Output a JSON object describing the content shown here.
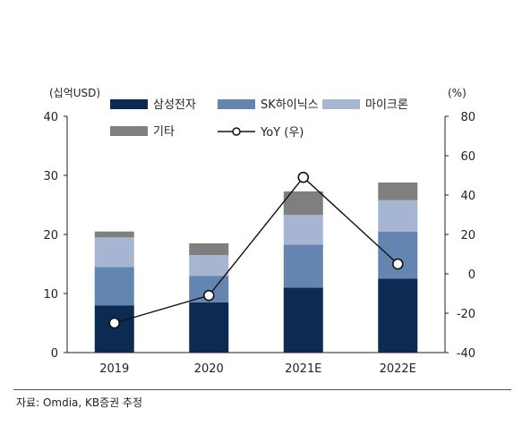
{
  "chart_data": {
    "type": "bar",
    "stacked": true,
    "categories": [
      "2019",
      "2020",
      "2021E",
      "2022E"
    ],
    "series": [
      {
        "name": "삼성전자",
        "color": "#0d2a52",
        "values": [
          8.0,
          8.5,
          11.0,
          12.5
        ]
      },
      {
        "name": "SK하이닉스",
        "color": "#6585b1",
        "values": [
          6.5,
          4.5,
          7.3,
          8.0
        ]
      },
      {
        "name": "마이크론",
        "color": "#a6b5d1",
        "values": [
          5.0,
          3.5,
          5.0,
          5.3
        ]
      },
      {
        "name": "기타",
        "color": "#7f7f7f",
        "values": [
          1.0,
          2.0,
          4.0,
          3.0
        ]
      }
    ],
    "line_series": {
      "name": "YoY (우)",
      "color": "#111111",
      "values": [
        -25,
        -11,
        49,
        5
      ]
    },
    "left_axis": {
      "unit": "(십억USD)",
      "min": 0,
      "max": 40,
      "ticks": [
        0,
        10,
        20,
        30,
        40
      ]
    },
    "right_axis": {
      "unit": "(%)",
      "min": -40,
      "max": 80,
      "ticks": [
        80,
        60,
        40,
        20,
        0,
        -20,
        -40
      ]
    },
    "legend_position": "top"
  },
  "source": "자료: Omdia, KB증권 추정"
}
